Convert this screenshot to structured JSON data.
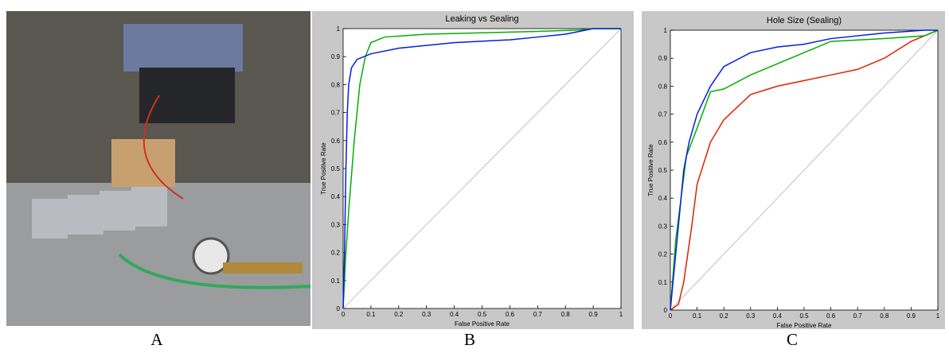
{
  "panel_labels": [
    "A",
    "B",
    "C"
  ],
  "chart_data": [
    {
      "type": "line",
      "title": "Leaking vs Sealing",
      "xlabel": "False Positive Rate",
      "ylabel": "True Positive Rate",
      "xlim": [
        0,
        1
      ],
      "ylim": [
        0,
        1
      ],
      "xticks": [
        0,
        0.1,
        0.2,
        0.3,
        0.4,
        0.5,
        0.6,
        0.7,
        0.8,
        0.9,
        1
      ],
      "yticks": [
        0,
        0.1,
        0.2,
        0.3,
        0.4,
        0.5,
        0.6,
        0.7,
        0.8,
        0.9,
        1
      ],
      "series": [
        {
          "color": "#c0c0c0",
          "x": [
            0,
            1
          ],
          "values": [
            0,
            1
          ]
        },
        {
          "color": "#00b000",
          "x": [
            0,
            0.01,
            0.02,
            0.04,
            0.06,
            0.08,
            0.1,
            0.15,
            0.3,
            0.5,
            0.7,
            0.85,
            0.9,
            1
          ],
          "values": [
            0,
            0.2,
            0.35,
            0.6,
            0.8,
            0.9,
            0.95,
            0.97,
            0.98,
            0.985,
            0.99,
            0.995,
            1,
            1
          ]
        },
        {
          "color": "#0020e0",
          "x": [
            0,
            0.005,
            0.01,
            0.015,
            0.02,
            0.03,
            0.05,
            0.1,
            0.2,
            0.4,
            0.6,
            0.7,
            0.8,
            0.85,
            0.9,
            1
          ],
          "values": [
            0,
            0.2,
            0.5,
            0.7,
            0.8,
            0.86,
            0.89,
            0.91,
            0.93,
            0.95,
            0.96,
            0.97,
            0.98,
            0.99,
            1,
            1
          ]
        }
      ]
    },
    {
      "type": "line",
      "title": "Hole Size (Sealing)",
      "xlabel": "False Positive Rate",
      "ylabel": "True Positive Rate",
      "xlim": [
        0,
        1
      ],
      "ylim": [
        0,
        1
      ],
      "xticks": [
        0,
        0.1,
        0.2,
        0.3,
        0.4,
        0.5,
        0.6,
        0.7,
        0.8,
        0.9,
        1
      ],
      "yticks": [
        0,
        0.1,
        0.2,
        0.3,
        0.4,
        0.5,
        0.6,
        0.7,
        0.8,
        0.9,
        1
      ],
      "series": [
        {
          "color": "#c0c0c0",
          "x": [
            0,
            1
          ],
          "values": [
            0,
            1
          ]
        },
        {
          "color": "#e02000",
          "x": [
            0,
            0.03,
            0.05,
            0.08,
            0.1,
            0.15,
            0.2,
            0.3,
            0.4,
            0.5,
            0.6,
            0.7,
            0.8,
            0.9,
            0.95,
            1
          ],
          "values": [
            0,
            0.02,
            0.1,
            0.3,
            0.45,
            0.6,
            0.68,
            0.77,
            0.8,
            0.82,
            0.84,
            0.86,
            0.9,
            0.96,
            0.98,
            1
          ]
        },
        {
          "color": "#00b000",
          "x": [
            0,
            0.02,
            0.04,
            0.06,
            0.1,
            0.15,
            0.2,
            0.3,
            0.4,
            0.5,
            0.6,
            0.8,
            0.95,
            1
          ],
          "values": [
            0,
            0.25,
            0.4,
            0.55,
            0.65,
            0.78,
            0.79,
            0.84,
            0.88,
            0.92,
            0.96,
            0.97,
            0.98,
            1
          ]
        },
        {
          "color": "#0020e0",
          "x": [
            0,
            0.02,
            0.04,
            0.05,
            0.07,
            0.1,
            0.15,
            0.2,
            0.3,
            0.4,
            0.5,
            0.6,
            0.8,
            0.95,
            1
          ],
          "values": [
            0,
            0.2,
            0.4,
            0.5,
            0.6,
            0.7,
            0.8,
            0.87,
            0.92,
            0.94,
            0.95,
            0.97,
            0.99,
            1,
            1
          ]
        }
      ]
    }
  ]
}
